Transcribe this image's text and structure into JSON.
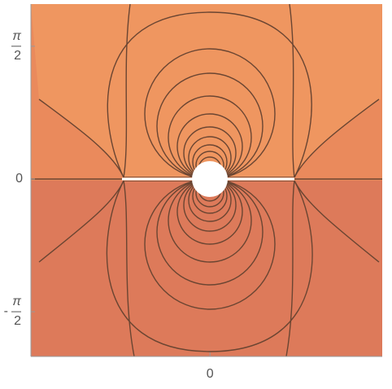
{
  "chart_data": {
    "type": "contour",
    "xlim": [
      -2.12,
      2.04
    ],
    "ylim": [
      -2.1,
      2.07
    ],
    "xticks": [
      0
    ],
    "yticks": [
      {
        "value": -1.5708,
        "label": "-π/2"
      },
      0,
      {
        "value": 1.5708,
        "label": "π/2"
      }
    ]
  }
}
